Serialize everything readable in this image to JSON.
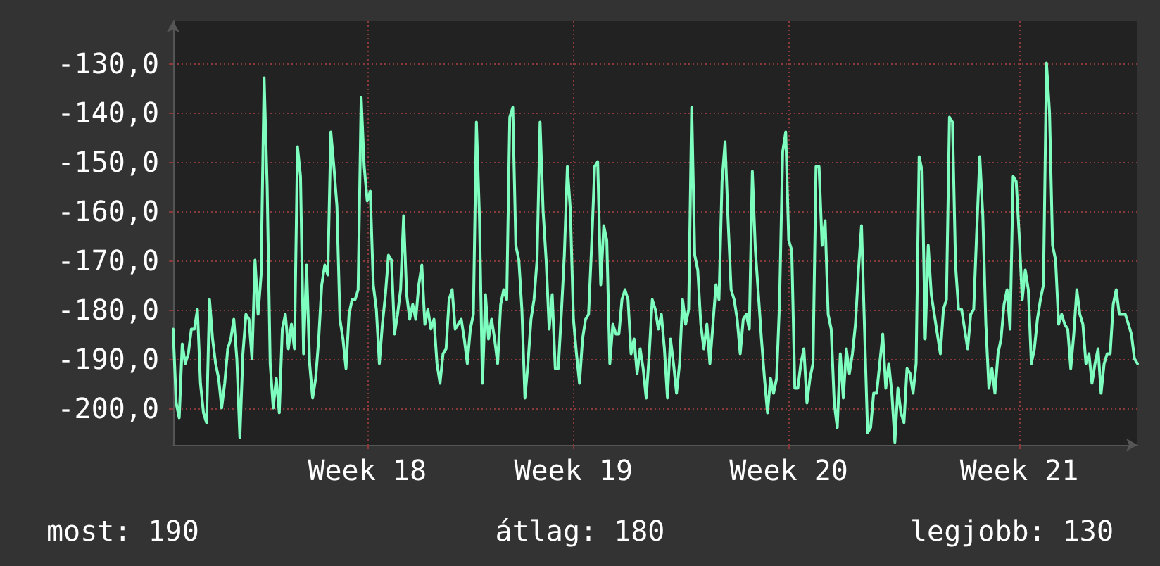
{
  "chart_data": {
    "type": "line",
    "annotations": [
      "most: 190",
      "átlag: 180",
      "legjobb: 130"
    ],
    "categories": [
      null,
      null,
      null,
      null,
      null,
      null,
      null,
      null,
      null,
      null,
      null,
      null,
      null,
      null,
      null,
      null,
      null,
      null,
      null,
      null,
      null,
      null,
      null,
      null,
      null,
      null,
      null,
      null,
      null,
      null,
      null,
      null,
      null,
      null,
      null,
      null,
      null,
      null,
      null,
      null,
      null,
      null,
      null,
      null,
      null,
      null,
      null,
      null,
      null,
      null,
      null,
      null,
      null,
      null,
      null,
      null,
      null,
      null,
      null,
      null,
      null,
      null,
      null,
      null,
      "Week 18",
      null,
      null,
      null,
      null,
      null,
      null,
      null,
      null,
      null,
      null,
      null,
      null,
      null,
      null,
      null,
      null,
      null,
      null,
      null,
      null,
      null,
      null,
      null,
      null,
      null,
      null,
      null,
      null,
      null,
      null,
      null,
      null,
      null,
      null,
      null,
      null,
      null,
      null,
      null,
      null,
      null,
      null,
      null,
      null,
      null,
      null,
      null,
      null,
      null,
      null,
      null,
      null,
      null,
      null,
      null,
      null,
      null,
      null,
      null,
      null,
      null,
      null,
      null,
      null,
      null,
      null,
      null,
      "Week 19",
      null,
      null,
      null,
      null,
      null,
      null,
      null,
      null,
      null,
      null,
      null,
      null,
      null,
      null,
      null,
      null,
      null,
      null,
      null,
      null,
      null,
      null,
      null,
      null,
      null,
      null,
      null,
      null,
      null,
      null,
      null,
      null,
      null,
      null,
      null,
      null,
      null,
      null,
      null,
      null,
      null,
      null,
      null,
      null,
      null,
      null,
      null,
      null,
      null,
      null,
      null,
      null,
      null,
      null,
      null,
      null,
      null,
      null,
      null,
      null,
      null,
      null,
      null,
      null,
      null,
      null,
      null,
      null,
      null,
      null,
      "Week 20",
      null,
      null,
      null,
      null,
      null,
      null,
      null,
      null,
      null,
      null,
      null,
      null,
      null,
      null,
      null,
      null,
      null,
      null,
      null,
      null,
      null,
      null,
      null,
      null,
      null,
      null,
      null,
      null,
      null,
      null,
      null,
      null,
      null,
      null,
      null,
      null,
      null,
      null,
      null,
      null,
      null,
      null,
      null,
      null,
      null,
      null,
      null,
      null,
      null,
      null,
      null,
      null,
      null,
      null,
      null,
      null,
      null,
      null,
      null,
      null,
      null,
      null,
      null,
      null,
      null,
      null,
      null,
      null,
      null,
      null,
      null,
      null,
      null,
      null,
      null,
      "Week 21",
      null,
      null,
      null,
      null,
      null,
      null,
      null,
      null,
      null,
      null,
      null,
      null,
      null,
      null,
      null,
      null,
      null,
      null,
      null,
      null,
      null,
      null,
      null,
      null,
      null,
      null,
      null,
      null,
      null,
      null,
      null,
      null,
      null,
      null,
      null,
      null,
      null,
      null,
      null
    ],
    "ylim": [
      -207.5,
      -121.5
    ],
    "yticks": [
      {
        "value": -200,
        "label": "-200,0"
      },
      {
        "value": -190,
        "label": "-190,0"
      },
      {
        "value": -180,
        "label": "-180,0"
      },
      {
        "value": -170,
        "label": "-170,0"
      },
      {
        "value": -160,
        "label": "-160,0"
      },
      {
        "value": -150,
        "label": "-150,0"
      },
      {
        "value": -140,
        "label": "-140,0"
      },
      {
        "value": -130,
        "label": "-130,0"
      }
    ],
    "grid": true,
    "marker": "none",
    "line_style": "solid",
    "series": [
      {
        "color": "#7fffbf",
        "values": [
          -184,
          -199,
          -202,
          -187,
          -191,
          -189,
          -184,
          -184,
          -180,
          -195,
          -201,
          -203,
          -178,
          -186,
          -191,
          -194,
          -200,
          -195,
          -188,
          -186,
          -182,
          -190,
          -206,
          -189,
          -181,
          -182,
          -190,
          -170,
          -181,
          -173,
          -133,
          -155,
          -191,
          -200,
          -194,
          -201,
          -184,
          -181,
          -188,
          -183,
          -188,
          -147,
          -153,
          -189,
          -171,
          -191,
          -198,
          -194,
          -186,
          -175,
          -171,
          -173,
          -144,
          -151,
          -159,
          -182,
          -186,
          -192,
          -181,
          -178,
          -178,
          -176,
          -137,
          -151,
          -158,
          -156,
          -175,
          -180,
          -191,
          -183,
          -177,
          -169,
          -170,
          -185,
          -181,
          -176,
          -161,
          -177,
          -182,
          -179,
          -182,
          -175,
          -171,
          -183,
          -180,
          -184,
          -182,
          -191,
          -195,
          -189,
          -188,
          -178,
          -176,
          -184,
          -183,
          -182,
          -186,
          -191,
          -184,
          -181,
          -142,
          -161,
          -195,
          -177,
          -186,
          -182,
          -186,
          -191,
          -179,
          -176,
          -178,
          -141,
          -139,
          -167,
          -170,
          -180,
          -198,
          -191,
          -182,
          -178,
          -170,
          -142,
          -160,
          -170,
          -184,
          -177,
          -192,
          -192,
          -181,
          -169,
          -151,
          -160,
          -182,
          -189,
          -195,
          -186,
          -182,
          -181,
          -167,
          -151,
          -150,
          -175,
          -163,
          -166,
          -191,
          -183,
          -185,
          -185,
          -178,
          -176,
          -178,
          -189,
          -186,
          -193,
          -188,
          -192,
          -198,
          -189,
          -178,
          -180,
          -184,
          -181,
          -188,
          -198,
          -186,
          -191,
          -197,
          -191,
          -178,
          -183,
          -180,
          -139,
          -169,
          -172,
          -183,
          -188,
          -183,
          -191,
          -183,
          -175,
          -178,
          -154,
          -146,
          -162,
          -176,
          -178,
          -182,
          -189,
          -182,
          -181,
          -184,
          -152,
          -168,
          -177,
          -186,
          -194,
          -201,
          -194,
          -197,
          -194,
          -178,
          -148,
          -144,
          -166,
          -168,
          -196,
          -196,
          -191,
          -188,
          -199,
          -194,
          -191,
          -151,
          -151,
          -167,
          -162,
          -181,
          -184,
          -199,
          -204,
          -189,
          -198,
          -188,
          -193,
          -189,
          -183,
          -172,
          -163,
          -184,
          -205,
          -204,
          -197,
          -197,
          -191,
          -185,
          -196,
          -191,
          -197,
          -207,
          -196,
          -201,
          -203,
          -192,
          -193,
          -197,
          -191,
          -149,
          -152,
          -186,
          -167,
          -177,
          -181,
          -185,
          -189,
          -180,
          -178,
          -141,
          -142,
          -171,
          -180,
          -180,
          -184,
          -188,
          -181,
          -180,
          -164,
          -149,
          -161,
          -183,
          -196,
          -192,
          -197,
          -189,
          -186,
          -179,
          -176,
          -184,
          -153,
          -154,
          -165,
          -178,
          -172,
          -176,
          -191,
          -188,
          -182,
          -178,
          -175,
          -130,
          -140,
          -167,
          -170,
          -183,
          -181,
          -183,
          -184,
          -192,
          -185,
          -176,
          -181,
          -183,
          -191,
          -189,
          -195,
          -191,
          -188,
          -197,
          -191,
          -189,
          -189,
          -179,
          -176,
          -181,
          -181,
          -181,
          -183,
          -185,
          -190,
          -191
        ]
      }
    ]
  }
}
